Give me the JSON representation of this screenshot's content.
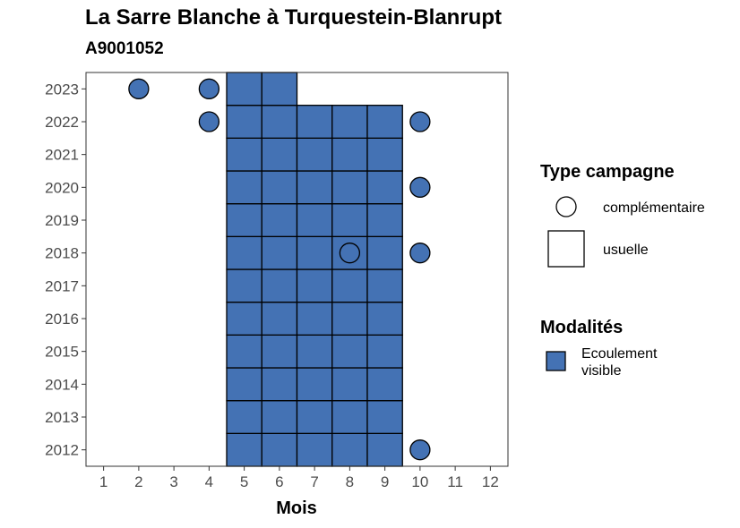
{
  "chart_data": {
    "type": "heatmap",
    "title": "La Sarre Blanche à Turquestein-Blanrupt",
    "subtitle": "A9001052",
    "xlabel": "Mois",
    "ylabel": "",
    "x_ticks": [
      "1",
      "2",
      "3",
      "4",
      "5",
      "6",
      "7",
      "8",
      "9",
      "10",
      "11",
      "12"
    ],
    "y_ticks": [
      "2012",
      "2013",
      "2014",
      "2015",
      "2016",
      "2017",
      "2018",
      "2019",
      "2020",
      "2021",
      "2022",
      "2023"
    ],
    "xlim": [
      0.5,
      12.5
    ],
    "ylim": [
      2011.5,
      2023.5
    ],
    "grid": false,
    "legend_position": "right",
    "fill_color": "#4472b4",
    "legends": {
      "shape": {
        "title": "Type campagne",
        "entries": [
          {
            "label": "complémentaire",
            "shape": "circle"
          },
          {
            "label": "usuelle",
            "shape": "square"
          }
        ]
      },
      "fill": {
        "title": "Modalités",
        "entries": [
          {
            "label_lines": [
              "Ecoulement",
              "visible"
            ],
            "color": "#4472b4"
          }
        ]
      }
    },
    "usuelle": [
      {
        "year": 2012,
        "months": [
          5,
          6,
          7,
          8,
          9
        ]
      },
      {
        "year": 2013,
        "months": [
          5,
          6,
          7,
          8,
          9
        ]
      },
      {
        "year": 2014,
        "months": [
          5,
          6,
          7,
          8,
          9
        ]
      },
      {
        "year": 2015,
        "months": [
          5,
          6,
          7,
          8,
          9
        ]
      },
      {
        "year": 2016,
        "months": [
          5,
          6,
          7,
          8,
          9
        ]
      },
      {
        "year": 2017,
        "months": [
          5,
          6,
          7,
          8,
          9
        ]
      },
      {
        "year": 2018,
        "months": [
          5,
          6,
          7,
          8,
          9
        ]
      },
      {
        "year": 2019,
        "months": [
          5,
          6,
          7,
          8,
          9
        ]
      },
      {
        "year": 2020,
        "months": [
          5,
          6,
          7,
          8,
          9
        ]
      },
      {
        "year": 2021,
        "months": [
          5,
          6,
          7,
          8,
          9
        ]
      },
      {
        "year": 2022,
        "months": [
          5,
          6,
          7,
          8,
          9
        ]
      },
      {
        "year": 2023,
        "months": [
          5,
          6
        ]
      }
    ],
    "complementaire": [
      {
        "year": 2012,
        "month": 10
      },
      {
        "year": 2018,
        "month": 8
      },
      {
        "year": 2018,
        "month": 10
      },
      {
        "year": 2020,
        "month": 10
      },
      {
        "year": 2022,
        "month": 4
      },
      {
        "year": 2022,
        "month": 10
      },
      {
        "year": 2023,
        "month": 2
      },
      {
        "year": 2023,
        "month": 4
      }
    ]
  }
}
